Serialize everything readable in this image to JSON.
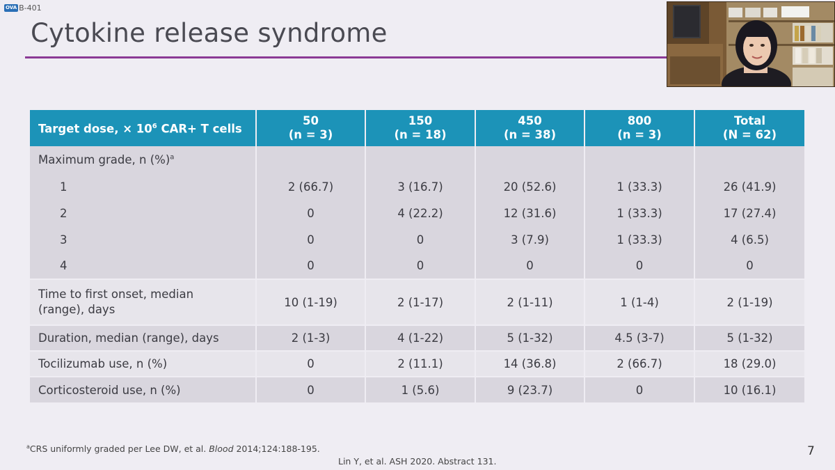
{
  "slide_tag": "B-401",
  "slide_tag_badge": "OVA",
  "title": "Cytokine release syndrome",
  "table": {
    "header": {
      "label": "Target dose, × 10",
      "label_sup": "6",
      "label_suffix": " CAR+ T cells",
      "columns": [
        {
          "dose": "50",
          "n": "(n = 3)"
        },
        {
          "dose": "150",
          "n": "(n = 18)"
        },
        {
          "dose": "450",
          "n": "(n = 38)"
        },
        {
          "dose": "800",
          "n": "(n = 3)"
        },
        {
          "dose": "Total",
          "n": "(N = 62)"
        }
      ]
    },
    "max_grade_label": "Maximum grade, n (%)",
    "max_grade_sup": "a",
    "grades": [
      {
        "grade": "1",
        "values": [
          "2 (66.7)",
          "3 (16.7)",
          "20 (52.6)",
          "1 (33.3)",
          "26 (41.9)"
        ]
      },
      {
        "grade": "2",
        "values": [
          "0",
          "4 (22.2)",
          "12 (31.6)",
          "1 (33.3)",
          "17 (27.4)"
        ]
      },
      {
        "grade": "3",
        "values": [
          "0",
          "0",
          "3 (7.9)",
          "1 (33.3)",
          "4 (6.5)"
        ]
      },
      {
        "grade": "4",
        "values": [
          "0",
          "0",
          "0",
          "0",
          "0"
        ]
      }
    ],
    "rows": [
      {
        "label_line1": "Time to first onset, median",
        "label_line2": "(range), days",
        "values": [
          "10 (1-19)",
          "2 (1-17)",
          "2 (1-11)",
          "1 (1-4)",
          "2 (1-19)"
        ]
      },
      {
        "label": "Duration, median (range), days",
        "values": [
          "2 (1-3)",
          "4 (1-22)",
          "5 (1-32)",
          "4.5 (3-7)",
          "5 (1-32)"
        ]
      },
      {
        "label": "Tocilizumab use, n (%)",
        "values": [
          "0",
          "2 (11.1)",
          "14 (36.8)",
          "2 (66.7)",
          "18 (29.0)"
        ]
      },
      {
        "label": "Corticosteroid use, n (%)",
        "values": [
          "0",
          "1 (5.6)",
          "9 (23.7)",
          "0",
          "10 (16.1)"
        ]
      }
    ]
  },
  "footnote": {
    "sup": "a",
    "text_before": "CRS uniformly graded per Lee DW, et al. ",
    "journal": "Blood",
    "text_after": " 2014;124:188-195."
  },
  "citation": "Lin Y, et al. ASH 2020. Abstract 131.",
  "page_number": "7"
}
